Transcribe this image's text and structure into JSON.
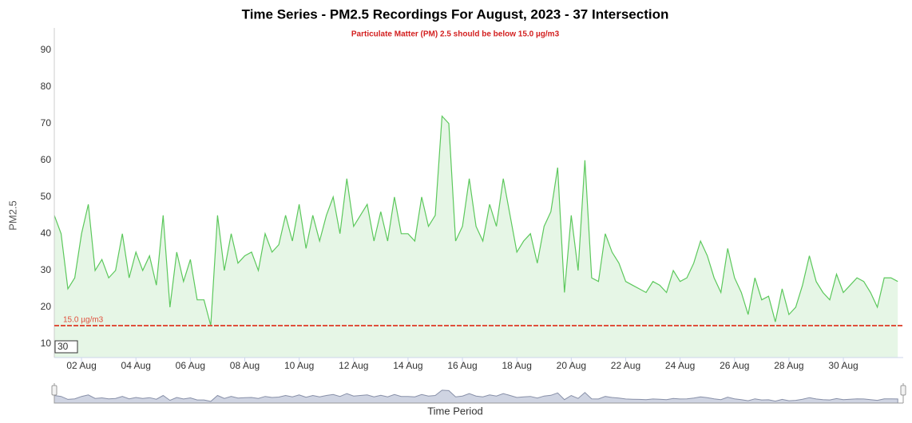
{
  "chart_data": {
    "type": "line",
    "title": "Time Series - PM2.5 Recordings For August, 2023 - 37 Intersection",
    "subtitle": "Particulate Matter (PM) 2.5 should be below 15.0 µg/m3",
    "y_label": "PM2.5",
    "x_label": "Time Period",
    "zoom_input": "30",
    "color": "#5cc85c",
    "fill_color": "#e6f6e6",
    "threshold": {
      "value": 15,
      "label": "15.0 µg/m3",
      "color": "#e0503c"
    },
    "xlim": [
      1,
      32.2
    ],
    "xticks": [
      {
        "value": 2,
        "label": "02 Aug"
      },
      {
        "value": 4,
        "label": "04 Aug"
      },
      {
        "value": 6,
        "label": "06 Aug"
      },
      {
        "value": 8,
        "label": "08 Aug"
      },
      {
        "value": 10,
        "label": "10 Aug"
      },
      {
        "value": 12,
        "label": "12 Aug"
      },
      {
        "value": 14,
        "label": "14 Aug"
      },
      {
        "value": 16,
        "label": "16 Aug"
      },
      {
        "value": 18,
        "label": "18 Aug"
      },
      {
        "value": 20,
        "label": "20 Aug"
      },
      {
        "value": 22,
        "label": "22 Aug"
      },
      {
        "value": 24,
        "label": "24 Aug"
      },
      {
        "value": 26,
        "label": "26 Aug"
      },
      {
        "value": 28,
        "label": "28 Aug"
      },
      {
        "value": 30,
        "label": "30 Aug"
      }
    ],
    "ylim": [
      6.3,
      96
    ],
    "yticks": [
      10,
      20,
      30,
      40,
      50,
      60,
      70,
      80,
      90
    ],
    "x": [
      1,
      1.25,
      1.5,
      1.75,
      2,
      2.25,
      2.5,
      2.75,
      3,
      3.25,
      3.5,
      3.75,
      4,
      4.25,
      4.5,
      4.75,
      5,
      5.25,
      5.5,
      5.75,
      6,
      6.25,
      6.5,
      6.75,
      7,
      7.25,
      7.5,
      7.75,
      8,
      8.25,
      8.5,
      8.75,
      9,
      9.25,
      9.5,
      9.75,
      10,
      10.25,
      10.5,
      10.75,
      11,
      11.25,
      11.5,
      11.75,
      12,
      12.25,
      12.5,
      12.75,
      13,
      13.25,
      13.5,
      13.75,
      14,
      14.25,
      14.5,
      14.75,
      15,
      15.25,
      15.5,
      15.75,
      16,
      16.25,
      16.5,
      16.75,
      17,
      17.25,
      17.5,
      17.75,
      18,
      18.25,
      18.5,
      18.75,
      19,
      19.25,
      19.5,
      19.75,
      20,
      20.25,
      20.5,
      20.75,
      21,
      21.25,
      21.5,
      21.75,
      22,
      22.25,
      22.5,
      22.75,
      23,
      23.25,
      23.5,
      23.75,
      24,
      24.25,
      24.5,
      24.75,
      25,
      25.25,
      25.5,
      25.75,
      26,
      26.25,
      26.5,
      26.75,
      27,
      27.25,
      27.5,
      27.75,
      28,
      28.25,
      28.5,
      28.75,
      29,
      29.25,
      29.5,
      29.75,
      30,
      30.25,
      30.5,
      30.75,
      31,
      31.25,
      31.5,
      31.75,
      32
    ],
    "values": [
      45,
      40,
      25,
      28,
      40,
      48,
      30,
      33,
      28,
      30,
      40,
      28,
      35,
      30,
      34,
      26,
      45,
      20,
      35,
      27,
      33,
      22,
      22,
      15,
      45,
      30,
      40,
      32,
      34,
      35,
      30,
      40,
      35,
      37,
      45,
      38,
      48,
      36,
      45,
      38,
      45,
      50,
      40,
      55,
      42,
      45,
      48,
      38,
      46,
      38,
      50,
      40,
      40,
      38,
      50,
      42,
      45,
      72,
      70,
      38,
      42,
      55,
      42,
      38,
      48,
      42,
      55,
      45,
      35,
      38,
      40,
      32,
      42,
      46,
      58,
      24,
      45,
      30,
      60,
      28,
      27,
      40,
      35,
      32,
      27,
      26,
      25,
      24,
      27,
      26,
      24,
      30,
      27,
      28,
      32,
      38,
      34,
      28,
      24,
      36,
      28,
      24,
      18,
      28,
      22,
      23,
      16,
      25,
      18,
      20,
      26,
      34,
      27,
      24,
      22,
      29,
      24,
      26,
      28,
      27,
      24,
      20,
      28,
      28,
      27
    ]
  }
}
